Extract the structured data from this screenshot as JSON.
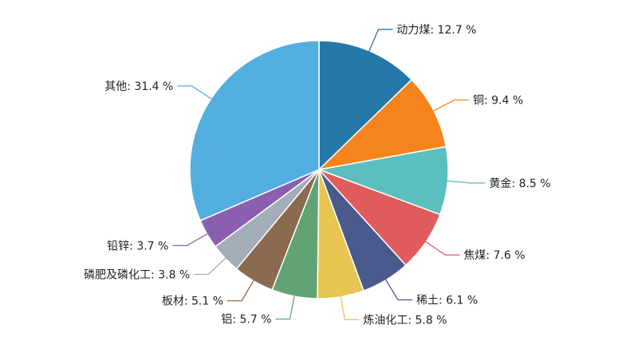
{
  "chart_data": {
    "type": "pie",
    "title": "",
    "start_angle_deg": 0,
    "direction": "clockwise",
    "slices": [
      {
        "name": "动力煤",
        "value": 12.7,
        "label": "动力煤: 12.7 %",
        "color": "#2678a8"
      },
      {
        "name": "铜",
        "value": 9.4,
        "label": "铜: 9.4 %",
        "color": "#f5841f"
      },
      {
        "name": "黄金",
        "value": 8.5,
        "label": "黄金: 8.5 %",
        "color": "#5cbfbf"
      },
      {
        "name": "焦煤",
        "value": 7.6,
        "label": "焦煤: 7.6 %",
        "color": "#e05c5c"
      },
      {
        "name": "稀土",
        "value": 6.1,
        "label": "稀土: 6.1 %",
        "color": "#4b5a8c"
      },
      {
        "name": "炼油化工",
        "value": 5.8,
        "label": "炼油化工: 5.8 %",
        "color": "#e6c553"
      },
      {
        "name": "铝",
        "value": 5.7,
        "label": "铝: 5.7 %",
        "color": "#61a374"
      },
      {
        "name": "板材",
        "value": 5.1,
        "label": "板材: 5.1 %",
        "color": "#8a6b4f"
      },
      {
        "name": "磷肥及磷化工",
        "value": 3.8,
        "label": "磷肥及磷化工: 3.8 %",
        "color": "#a3adb8"
      },
      {
        "name": "铅锌",
        "value": 3.7,
        "label": "铅锌: 3.7 %",
        "color": "#8a5fb0"
      },
      {
        "name": "其他",
        "value": 31.4,
        "label": "其他: 31.4 %",
        "color": "#52aede"
      }
    ]
  }
}
